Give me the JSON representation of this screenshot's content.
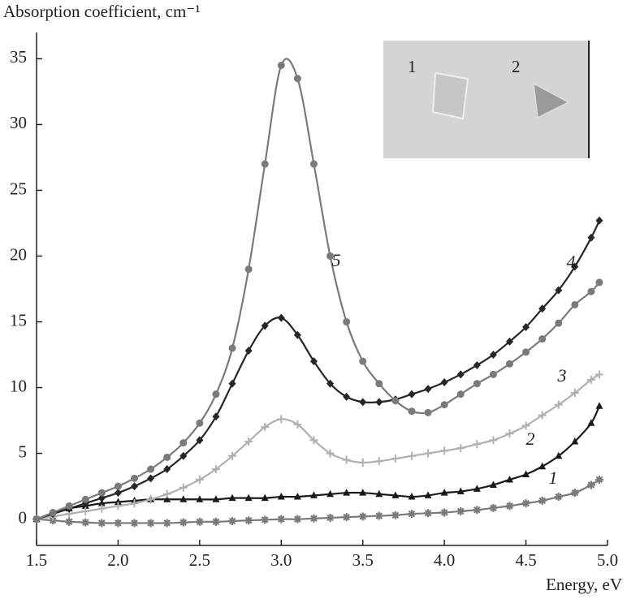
{
  "chart_data": {
    "type": "line",
    "y_label": "Absorption coefficient, cm⁻¹",
    "x_label": "Energy, eV",
    "x": [
      1.5,
      1.6,
      1.7,
      1.8,
      1.9,
      2.0,
      2.1,
      2.2,
      2.3,
      2.4,
      2.5,
      2.6,
      2.7,
      2.8,
      2.9,
      3.0,
      3.1,
      3.2,
      3.3,
      3.4,
      3.5,
      3.6,
      3.7,
      3.8,
      3.9,
      4.0,
      4.1,
      4.2,
      4.3,
      4.4,
      4.5,
      4.6,
      4.7,
      4.8,
      4.9,
      4.95
    ],
    "series": [
      {
        "name": "1",
        "color": "#7a7a7a",
        "marker": "asterisk",
        "values": [
          0,
          -0.1,
          -0.2,
          -0.25,
          -0.3,
          -0.3,
          -0.3,
          -0.3,
          -0.3,
          -0.25,
          -0.2,
          -0.2,
          -0.15,
          -0.1,
          -0.05,
          0,
          0,
          0.05,
          0.1,
          0.15,
          0.2,
          0.25,
          0.3,
          0.4,
          0.45,
          0.5,
          0.6,
          0.7,
          0.85,
          1.0,
          1.2,
          1.4,
          1.7,
          2.0,
          2.6,
          3.0
        ]
      },
      {
        "name": "2",
        "color": "#1a1a1a",
        "marker": "triangle",
        "values": [
          0,
          0.4,
          0.8,
          1.0,
          1.2,
          1.3,
          1.4,
          1.5,
          1.5,
          1.5,
          1.5,
          1.5,
          1.6,
          1.6,
          1.6,
          1.7,
          1.7,
          1.8,
          1.9,
          2.0,
          2.0,
          1.9,
          1.8,
          1.7,
          1.8,
          2.0,
          2.1,
          2.3,
          2.6,
          3.0,
          3.4,
          4.0,
          4.8,
          5.9,
          7.3,
          8.6
        ]
      },
      {
        "name": "3",
        "color": "#b0b0b0",
        "marker": "plus",
        "values": [
          0,
          0.2,
          0.4,
          0.6,
          0.8,
          1.0,
          1.2,
          1.5,
          1.9,
          2.4,
          3.0,
          3.8,
          4.8,
          5.9,
          7.0,
          7.6,
          7.2,
          6.0,
          5.0,
          4.5,
          4.3,
          4.4,
          4.6,
          4.8,
          5.0,
          5.2,
          5.4,
          5.7,
          6.0,
          6.5,
          7.1,
          7.9,
          8.7,
          9.6,
          10.6,
          11.0
        ]
      },
      {
        "name": "4",
        "color": "#262626",
        "marker": "diamond",
        "values": [
          0,
          0.4,
          0.8,
          1.2,
          1.6,
          2.0,
          2.5,
          3.1,
          3.8,
          4.8,
          6.0,
          7.8,
          10.3,
          12.8,
          14.7,
          15.3,
          14.0,
          12.0,
          10.3,
          9.3,
          8.9,
          8.9,
          9.1,
          9.5,
          9.9,
          10.4,
          11.0,
          11.7,
          12.5,
          13.5,
          14.6,
          16.0,
          17.4,
          19.2,
          21.4,
          22.7
        ]
      },
      {
        "name": "5",
        "color": "#7a7a7a",
        "marker": "circle",
        "values": [
          0,
          0.5,
          1.0,
          1.5,
          2.0,
          2.5,
          3.1,
          3.8,
          4.7,
          5.8,
          7.3,
          9.5,
          13.0,
          19.0,
          27.0,
          34.5,
          33.5,
          27.0,
          20.0,
          15.0,
          12.0,
          10.3,
          9.0,
          8.2,
          8.1,
          8.7,
          9.5,
          10.3,
          11.0,
          11.8,
          12.7,
          13.7,
          14.9,
          16.3,
          17.3,
          18.0
        ]
      }
    ],
    "xlim": [
      1.5,
      5.0
    ],
    "ylim": [
      -2,
      37
    ],
    "xticks": [
      1.5,
      {
        "value": 2,
        "label": "2.0"
      },
      2.5,
      {
        "value": 3,
        "label": "3.0"
      },
      3.5,
      {
        "value": 4,
        "label": "4.0"
      },
      4.5,
      {
        "value": 5,
        "label": "5.0"
      }
    ],
    "yticks": [
      0,
      5,
      10,
      15,
      20,
      25,
      30,
      35
    ],
    "inset": {
      "labels": [
        "1",
        "2"
      ]
    }
  }
}
